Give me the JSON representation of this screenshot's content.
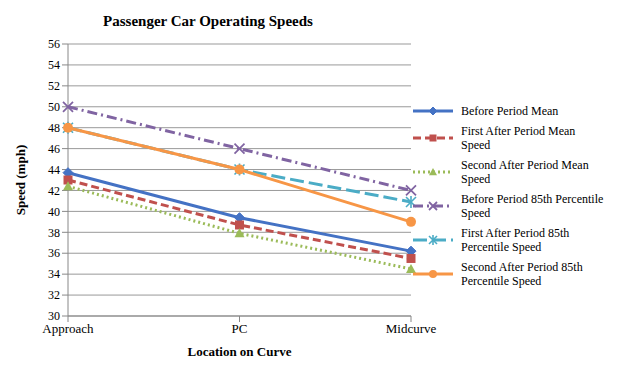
{
  "chart_data": {
    "type": "line",
    "title": "Passenger Car Operating Speeds",
    "x_label": "Location on Curve",
    "y_label": "Speed (mph)",
    "categories": [
      "Approach",
      "PC",
      "Midcurve"
    ],
    "series": [
      {
        "name": "Before Period Mean",
        "color": "#4472c4",
        "marker": "diamond",
        "line_style": "solid",
        "values": [
          43.7,
          39.4,
          36.2
        ]
      },
      {
        "name": "First After Period Mean Speed",
        "color": "#c0504d",
        "marker": "square",
        "line_style": "dashed",
        "values": [
          43.0,
          38.7,
          35.5
        ]
      },
      {
        "name": "Second After Period Mean Speed",
        "color": "#9bbb59",
        "marker": "triangle",
        "line_style": "dotted",
        "values": [
          42.4,
          37.9,
          34.5
        ]
      },
      {
        "name": "Before Period 85th Percentile Speed",
        "color": "#8064a2",
        "marker": "cross",
        "line_style": "dashdot",
        "values": [
          50.0,
          46.0,
          42.0
        ]
      },
      {
        "name": "First After Period 85th Percentile Speed",
        "color": "#4bacc6",
        "marker": "star",
        "line_style": "longdash",
        "values": [
          48.0,
          44.0,
          40.9
        ]
      },
      {
        "name": "Second After Period 85th Percentile Speed",
        "color": "#f79646",
        "marker": "circle",
        "line_style": "solid",
        "values": [
          48.0,
          44.0,
          39.0
        ]
      }
    ],
    "ylim": [
      30,
      56
    ],
    "yticks": [
      30,
      32,
      34,
      36,
      38,
      40,
      42,
      44,
      46,
      48,
      50,
      52,
      54,
      56
    ],
    "grid": true,
    "legend": "right"
  }
}
